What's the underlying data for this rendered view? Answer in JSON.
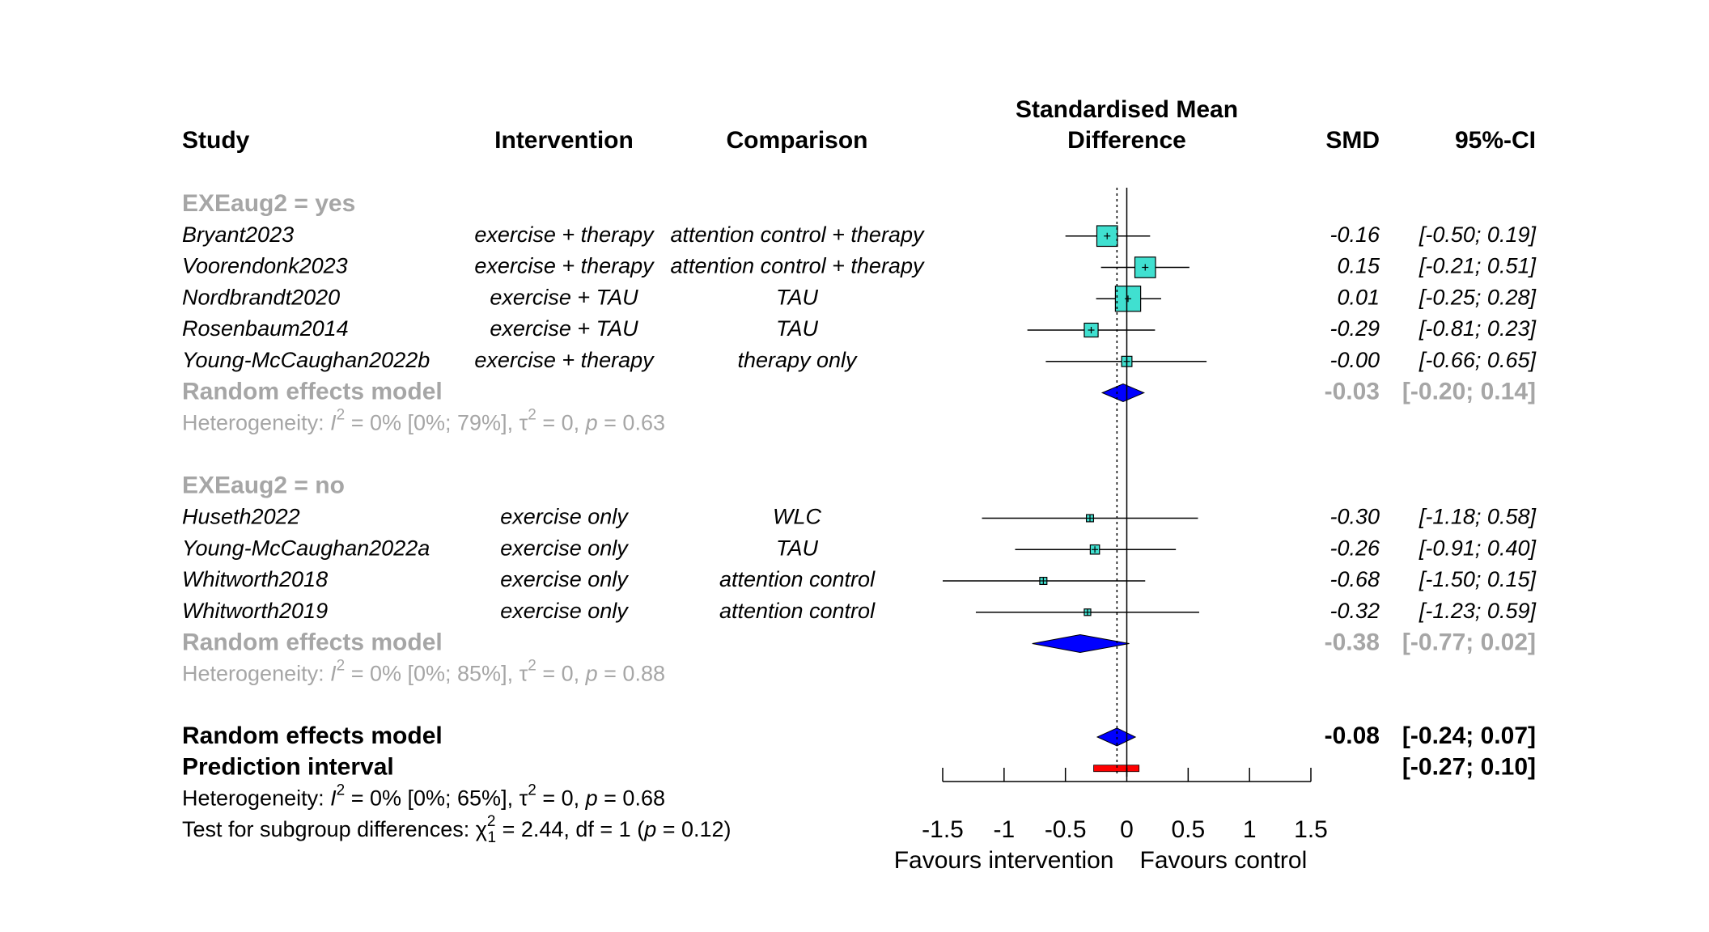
{
  "chart_data": {
    "type": "forest",
    "columns": {
      "study": "Study",
      "intervention": "Intervention",
      "comparison": "Comparison",
      "effect_line1": "Standardised Mean",
      "effect_line2": "Difference",
      "smd": "SMD",
      "ci": "95%-CI"
    },
    "subgroups": [
      {
        "label": "EXEaug2 = yes",
        "studies": [
          {
            "study": "Bryant2023",
            "intervention": "exercise + therapy",
            "comparison": "attention control + therapy",
            "smd": -0.16,
            "lower": -0.5,
            "upper": 0.19,
            "smd_text": "-0.16",
            "ci_text": "[-0.50; 0.19]",
            "weight": 1.0
          },
          {
            "study": "Voorendonk2023",
            "intervention": "exercise + therapy",
            "comparison": "attention control + therapy",
            "smd": 0.15,
            "lower": -0.21,
            "upper": 0.51,
            "smd_text": "0.15",
            "ci_text": "[-0.21; 0.51]",
            "weight": 1.0
          },
          {
            "study": "Nordbrandt2020",
            "intervention": "exercise + TAU",
            "comparison": "TAU",
            "smd": 0.01,
            "lower": -0.25,
            "upper": 0.28,
            "smd_text": "0.01",
            "ci_text": "[-0.25; 0.28]",
            "weight": 1.5
          },
          {
            "study": "Rosenbaum2014",
            "intervention": "exercise + TAU",
            "comparison": "TAU",
            "smd": -0.29,
            "lower": -0.81,
            "upper": 0.23,
            "smd_text": "-0.29",
            "ci_text": "[-0.81; 0.23]",
            "weight": 0.45
          },
          {
            "study": "Young-McCaughan2022b",
            "intervention": "exercise + therapy",
            "comparison": "therapy only",
            "smd": -0.0,
            "lower": -0.66,
            "upper": 0.65,
            "smd_text": "-0.00",
            "ci_text": "[-0.66; 0.65]",
            "weight": 0.25
          }
        ],
        "model": {
          "label": "Random effects model",
          "smd": -0.03,
          "lower": -0.2,
          "upper": 0.14,
          "smd_text": "-0.03",
          "ci_text": "[-0.20; 0.14]"
        },
        "heterogeneity": {
          "prefix": "Heterogeneity: ",
          "i_symbol": "I",
          "sup": "2",
          "part1": " = 0% [0%; 79%], ",
          "tau_symbol": "τ",
          "tau_sup": "2",
          "part2": " = 0, ",
          "p_symbol": "p",
          "part3": " = 0.63"
        }
      },
      {
        "label": "EXEaug2 = no",
        "studies": [
          {
            "study": "Huseth2022",
            "intervention": "exercise only",
            "comparison": "WLC",
            "smd": -0.3,
            "lower": -1.18,
            "upper": 0.58,
            "smd_text": "-0.30",
            "ci_text": "[-1.18; 0.58]",
            "weight": 0.12
          },
          {
            "study": "Young-McCaughan2022a",
            "intervention": "exercise only",
            "comparison": "TAU",
            "smd": -0.26,
            "lower": -0.91,
            "upper": 0.4,
            "smd_text": "-0.26",
            "ci_text": "[-0.91; 0.40]",
            "weight": 0.2
          },
          {
            "study": "Whitworth2018",
            "intervention": "exercise only",
            "comparison": "attention control",
            "smd": -0.68,
            "lower": -1.5,
            "upper": 0.15,
            "smd_text": "-0.68",
            "ci_text": "[-1.50; 0.15]",
            "weight": 0.12
          },
          {
            "study": "Whitworth2019",
            "intervention": "exercise only",
            "comparison": "attention control",
            "smd": -0.32,
            "lower": -1.23,
            "upper": 0.59,
            "smd_text": "-0.32",
            "ci_text": "[-1.23; 0.59]",
            "weight": 0.1
          }
        ],
        "model": {
          "label": "Random effects model",
          "smd": -0.38,
          "lower": -0.77,
          "upper": 0.02,
          "smd_text": "-0.38",
          "ci_text": "[-0.77; 0.02]"
        },
        "heterogeneity": {
          "prefix": "Heterogeneity: ",
          "i_symbol": "I",
          "sup": "2",
          "part1": " = 0% [0%; 85%], ",
          "tau_symbol": "τ",
          "tau_sup": "2",
          "part2": " = 0, ",
          "p_symbol": "p",
          "part3": " = 0.88"
        }
      }
    ],
    "overall": {
      "label": "Random effects model",
      "smd": -0.08,
      "lower": -0.24,
      "upper": 0.07,
      "smd_text": "-0.08",
      "ci_text": "[-0.24; 0.07]",
      "prediction_label": "Prediction interval",
      "prediction_lower": -0.27,
      "prediction_upper": 0.1,
      "prediction_ci_text": "[-0.27; 0.10]",
      "heterogeneity": {
        "prefix": "Heterogeneity: ",
        "i_symbol": "I",
        "sup": "2",
        "part1": " = 0% [0%; 65%], ",
        "tau_symbol": "τ",
        "tau_sup": "2",
        "part2": " = 0, ",
        "p_symbol": "p",
        "part3": " = 0.68"
      },
      "subgroup_test": {
        "prefix": "Test for subgroup differences: ",
        "chi_symbol": "χ",
        "chi_sup": "2",
        "chi_sub": "1",
        "part1": " = 2.44, df = 1 (",
        "p_symbol": "p",
        "part2": " = 0.12)"
      }
    },
    "x_ticks": [
      -1.5,
      -1,
      -0.5,
      0,
      0.5,
      1,
      1.5
    ],
    "x_tick_labels": [
      "-1.5",
      "-1",
      "-0.5",
      "0",
      "0.5",
      "1",
      "1.5"
    ],
    "xlim": [
      -1.5,
      1.5
    ],
    "reference_line": 0,
    "overall_line": -0.08,
    "label_left": "Favours intervention",
    "label_right": "Favours control",
    "colors": {
      "square": "#40e0d0",
      "diamond": "#0000ff",
      "prediction": "#ff0000",
      "subgroup_text": "#a6a6a6"
    }
  }
}
